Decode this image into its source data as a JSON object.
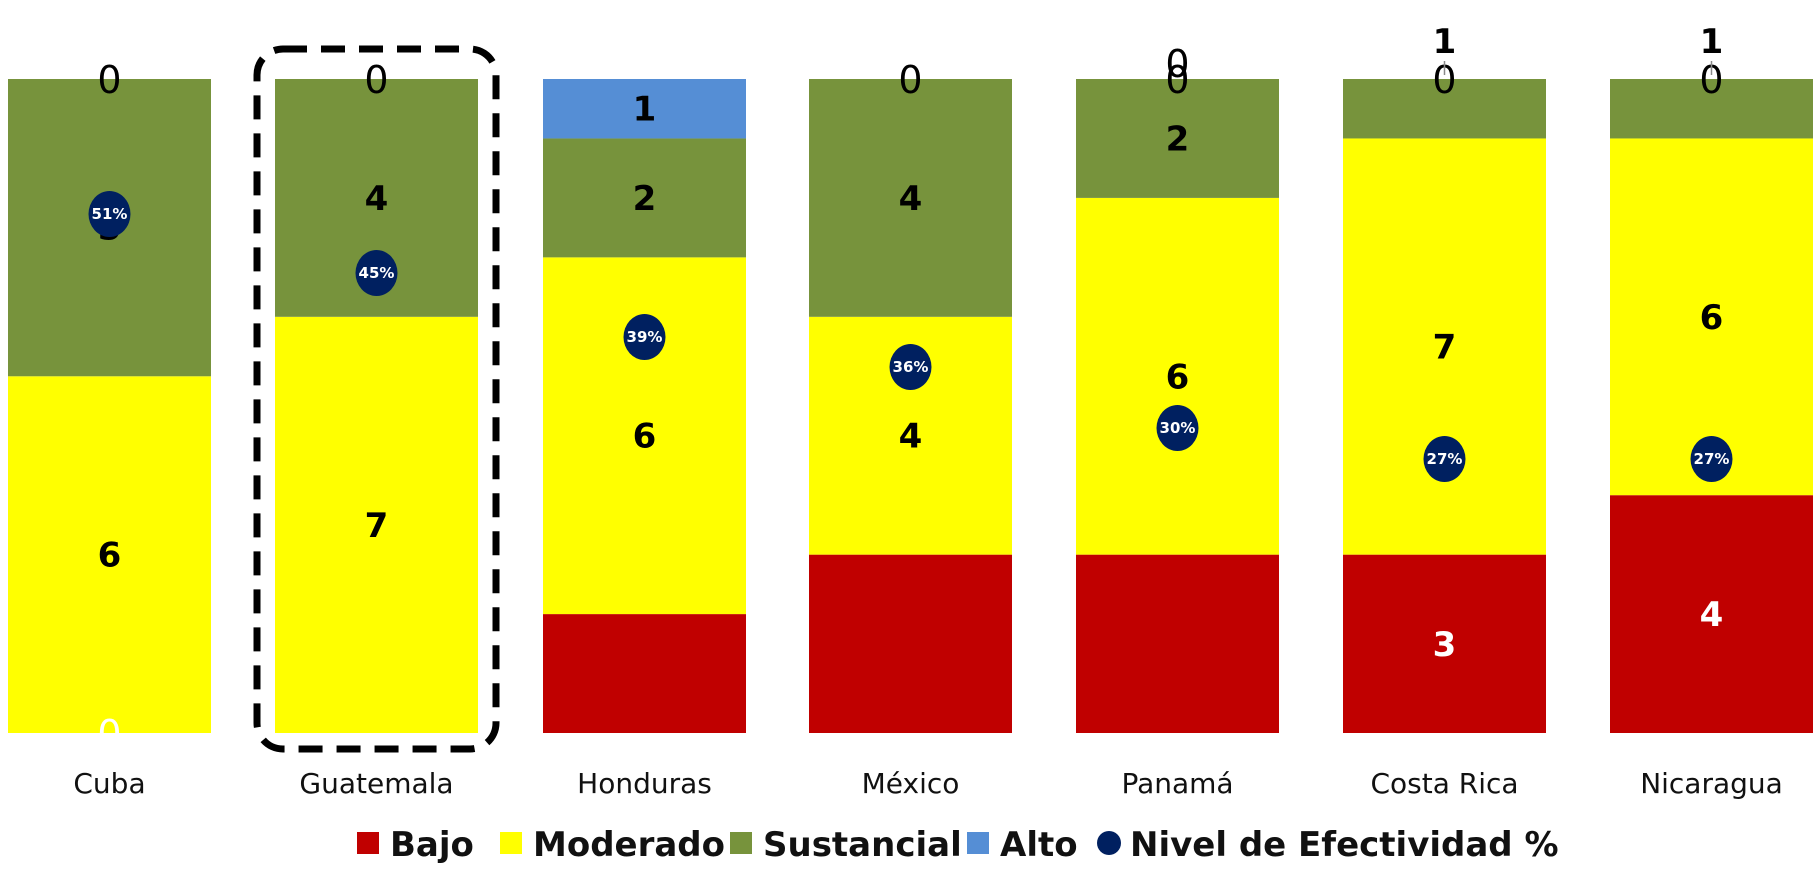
{
  "chart_data": {
    "type": "bar",
    "stacked": true,
    "categories": [
      "Cuba",
      "Guatemala",
      "Honduras",
      "México",
      "Panamá",
      "Costa Rica",
      "Nicaragua"
    ],
    "series": [
      {
        "name": "Bajo",
        "color": "#c00000",
        "values": [
          0,
          0,
          2,
          3,
          3,
          3,
          4
        ],
        "value_labels": [
          "0",
          "",
          "",
          "",
          "",
          "3",
          "4"
        ]
      },
      {
        "name": "Moderado",
        "color": "#ffff00",
        "values": [
          6,
          7,
          6,
          4,
          6,
          7,
          6
        ],
        "value_labels": [
          "6",
          "7",
          "6",
          "4",
          "6",
          "7",
          "6"
        ]
      },
      {
        "name": "Sustancial",
        "color": "#77933c",
        "values": [
          5,
          4,
          2,
          4,
          2,
          1,
          1
        ],
        "value_labels": [
          "5",
          "4",
          "2",
          "4",
          "2",
          "",
          ""
        ]
      },
      {
        "name": "Alto",
        "color": "#558ed5",
        "values": [
          0,
          0,
          1,
          0,
          0,
          0,
          0
        ],
        "value_labels": [
          "0",
          "0",
          "1",
          "0",
          "0",
          "0",
          "0"
        ]
      }
    ],
    "extra_labels": [
      "",
      "",
      "",
      "",
      "0",
      "1",
      "1"
    ],
    "effectiveness": {
      "name": "Nivel de Efectividad %",
      "color": "#002060",
      "values": [
        51,
        45,
        39,
        36,
        30,
        27,
        27
      ],
      "labels": [
        "51%",
        "45%",
        "39%",
        "36%",
        "30%",
        "27%",
        "27%"
      ]
    },
    "highlighted_category": "Guatemala",
    "ylim": [
      0,
      11
    ],
    "legend_position": "bottom",
    "grid": false
  }
}
